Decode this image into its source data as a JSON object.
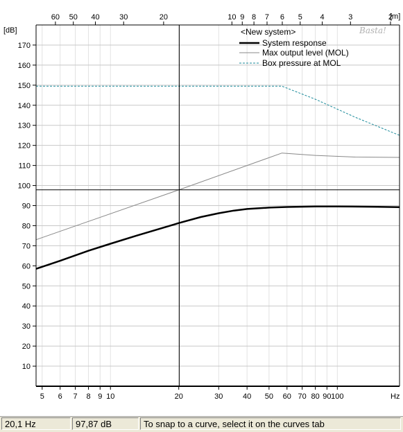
{
  "chart_data": {
    "type": "line",
    "y_unit_label": "[dB]",
    "x_unit_label": "Hz",
    "top_unit_label": "[m]",
    "x_scale": "log",
    "xlim": [
      4.7,
      188
    ],
    "ylim": [
      0,
      180
    ],
    "y_ticks": [
      10,
      20,
      30,
      40,
      50,
      60,
      70,
      80,
      90,
      100,
      110,
      120,
      130,
      140,
      150,
      160,
      170
    ],
    "x_ticks": [
      5,
      6,
      7,
      8,
      9,
      10,
      20,
      30,
      40,
      50,
      60,
      70,
      80,
      90,
      100
    ],
    "x_tick_labels": [
      "5",
      "6",
      "7",
      "8",
      "9",
      "10",
      "20",
      "30",
      "40",
      "50",
      "60",
      "70",
      "80",
      "90",
      "100"
    ],
    "top_ticks": [
      {
        "label": "60",
        "hz": 5.72
      },
      {
        "label": "50",
        "hz": 6.86
      },
      {
        "label": "40",
        "hz": 8.58
      },
      {
        "label": "30",
        "hz": 11.43
      },
      {
        "label": "20",
        "hz": 17.15
      },
      {
        "label": "10",
        "hz": 34.3
      },
      {
        "label": "9",
        "hz": 38.1
      },
      {
        "label": "8",
        "hz": 42.9
      },
      {
        "label": "7",
        "hz": 49.0
      },
      {
        "label": "6",
        "hz": 57.2
      },
      {
        "label": "5",
        "hz": 68.6
      },
      {
        "label": "4",
        "hz": 85.8
      },
      {
        "label": "3",
        "hz": 114.3
      },
      {
        "label": "2",
        "hz": 171.5
      }
    ],
    "grid": true,
    "legend_position": "top-right",
    "legend_title": "<New system>",
    "watermark": "Basta!",
    "cursor": {
      "x": 20.1,
      "y": 97.87
    },
    "series": [
      {
        "name": "System response",
        "color": "#000000",
        "style": "solid",
        "points": [
          [
            4.7,
            58.5
          ],
          [
            6,
            62.5
          ],
          [
            8,
            67.5
          ],
          [
            10,
            71
          ],
          [
            13,
            75
          ],
          [
            16,
            78
          ],
          [
            20,
            81.3
          ],
          [
            25,
            84.3
          ],
          [
            30,
            86.2
          ],
          [
            35,
            87.5
          ],
          [
            40,
            88.3
          ],
          [
            50,
            89
          ],
          [
            60,
            89.3
          ],
          [
            80,
            89.6
          ],
          [
            100,
            89.6
          ],
          [
            150,
            89.4
          ],
          [
            188,
            89.2
          ]
        ]
      },
      {
        "name": "Max output level (MOL)",
        "color": "#888888",
        "style": "solid",
        "points": [
          [
            4.7,
            73
          ],
          [
            20.1,
            97.9
          ],
          [
            57,
            116.2
          ],
          [
            80,
            115
          ],
          [
            120,
            114.2
          ],
          [
            188,
            114
          ]
        ]
      },
      {
        "name": "Box pressure at MOL",
        "color": "#1a8a9a",
        "style": "dashed",
        "points": [
          [
            4.7,
            149.5
          ],
          [
            57,
            149.5
          ],
          [
            80,
            143
          ],
          [
            120,
            134
          ],
          [
            188,
            125
          ]
        ]
      }
    ]
  },
  "status": {
    "frequency": "20,1 Hz",
    "level": "97,87 dB",
    "hint": "To snap to a curve, select it on the curves tab"
  }
}
